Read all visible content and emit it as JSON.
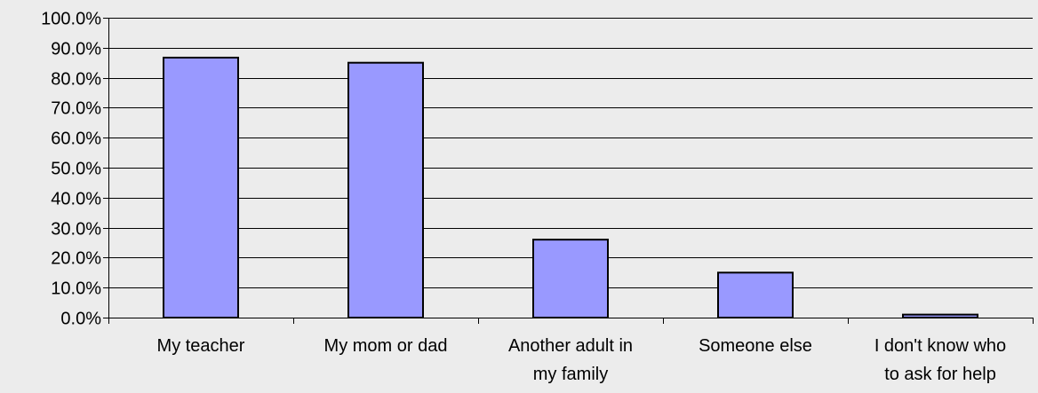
{
  "colors": {
    "background": "#ececec",
    "bar_fill": "#9999ff",
    "bar_stroke": "#000000",
    "gridline": "#000000"
  },
  "chart_data": {
    "type": "bar",
    "title": "",
    "xlabel": "",
    "ylabel": "",
    "grid": true,
    "legend": "none",
    "ylim": [
      0,
      100
    ],
    "y_tick_step": 10,
    "y_tick_labels": [
      "0.0%",
      "10.0%",
      "20.0%",
      "30.0%",
      "40.0%",
      "50.0%",
      "60.0%",
      "70.0%",
      "80.0%",
      "90.0%",
      "100.0%"
    ],
    "categories": [
      [
        "My teacher"
      ],
      [
        "My mom or dad"
      ],
      [
        "Another adult in",
        "my family"
      ],
      [
        "Someone else"
      ],
      [
        "I don't know who",
        "to ask for help"
      ]
    ],
    "values": [
      86.7,
      85.0,
      26.0,
      15.0,
      1.0
    ]
  }
}
